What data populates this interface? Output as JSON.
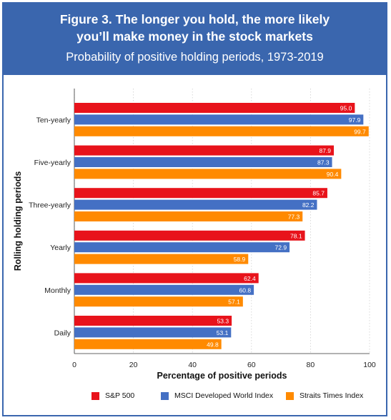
{
  "header": {
    "title_line1": "Figure 3. The longer you hold, the more likely",
    "title_line2": "you’ll make money in the stock markets",
    "subtitle": "Probability of positive holding periods, 1973-2019"
  },
  "colors": {
    "frame": "#3a66ae",
    "sp500": "#e8131b",
    "msci": "#4470c4",
    "sti": "#ff8a00"
  },
  "chart_data": {
    "type": "bar",
    "orientation": "horizontal",
    "categories": [
      "Ten-yearly",
      "Five-yearly",
      "Three-yearly",
      "Yearly",
      "Monthly",
      "Daily"
    ],
    "series": [
      {
        "name": "S&P 500",
        "color": "#e8131b",
        "values": [
          95.0,
          87.9,
          85.7,
          78.1,
          62.4,
          53.3
        ]
      },
      {
        "name": "MSCI Developed World Index",
        "color": "#4470c4",
        "values": [
          97.9,
          87.3,
          82.2,
          72.9,
          60.8,
          53.1
        ]
      },
      {
        "name": "Straits Times Index",
        "color": "#ff8a00",
        "values": [
          99.7,
          90.4,
          77.3,
          58.9,
          57.1,
          49.8
        ]
      }
    ],
    "xlabel": "Percentage of positive periods",
    "ylabel": "Rolling holding periods",
    "xlim": [
      0,
      100
    ],
    "xticks": [
      0,
      20,
      40,
      60,
      80,
      100
    ],
    "grid": "vertical",
    "legend_position": "bottom"
  }
}
